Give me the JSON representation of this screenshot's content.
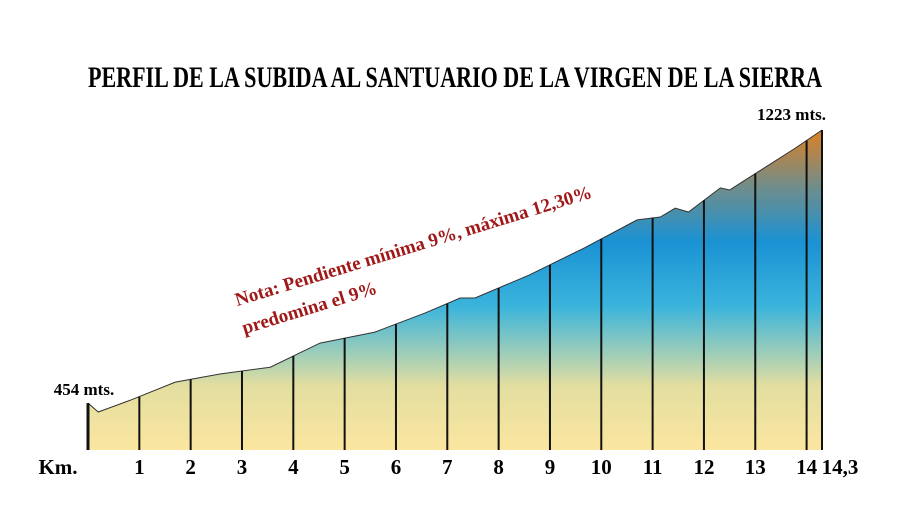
{
  "chart_data": {
    "type": "area",
    "title": "PERFIL DE LA SUBIDA AL SANTUARIO DE LA VIRGEN DE LA SIERRA",
    "x_label": "Km.",
    "x": [
      0,
      0.2,
      0.82,
      1.7,
      2.57,
      3.55,
      4.52,
      5.59,
      6.57,
      7.25,
      7.54,
      8.6,
      9.67,
      10.7,
      11.15,
      11.44,
      11.7,
      12.32,
      12.5,
      12.75,
      13.78,
      14.3
    ],
    "values": [
      454,
      429,
      462,
      513,
      536,
      555,
      623,
      654,
      708,
      750,
      750,
      815,
      891,
      970,
      978,
      1003,
      992,
      1060,
      1054,
      1077,
      1172,
      1223
    ],
    "value_labels": [
      "454 mts.",
      null,
      null,
      null,
      null,
      null,
      null,
      null,
      null,
      null,
      null,
      null,
      null,
      null,
      null,
      null,
      null,
      null,
      null,
      null,
      null,
      "1223 mts."
    ],
    "xlim": [
      0,
      14.3
    ],
    "xticks": [
      1,
      2,
      3,
      4,
      5,
      6,
      7,
      8,
      9,
      10,
      11,
      12,
      13,
      14,
      {
        "value": 14.3,
        "label": "14,3"
      }
    ],
    "ylim": [
      322,
      1223
    ],
    "annotations": [
      "Nota: Pendiente mínima 9%, máxima 12,30%",
      "predomina el 9%"
    ],
    "grid": true
  }
}
